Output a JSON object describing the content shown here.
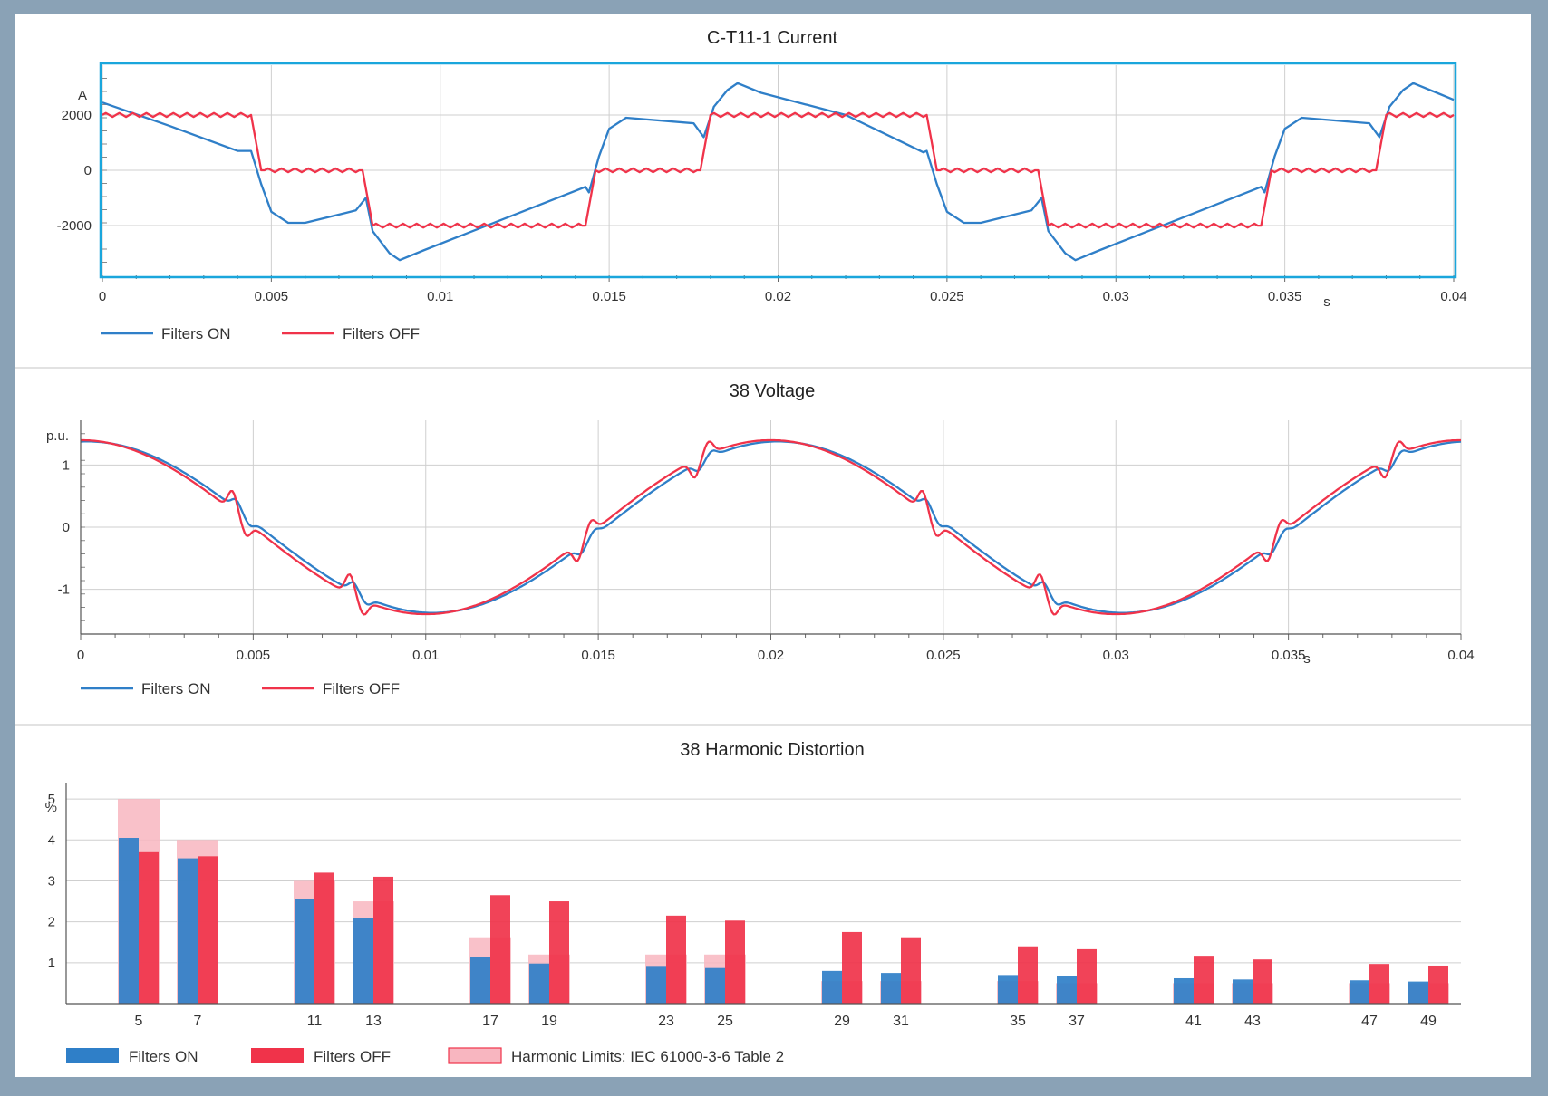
{
  "colors": {
    "filters_on": "#2f7fc8",
    "filters_off": "#f0334a",
    "limit_fill": "#f8b6c0",
    "limit_stroke": "#f0334a",
    "current_frame": "#1aa6dc",
    "grid": "#cfcfcf",
    "background": "#8aa2b6"
  },
  "chart_data": [
    {
      "type": "line",
      "title": "C-T11-1 Current",
      "yunit": "A",
      "xunit": "s",
      "xlim": [
        0,
        0.04
      ],
      "ylim": [
        -3800,
        3800
      ],
      "xticks": [
        0,
        0.005,
        0.01,
        0.015,
        0.02,
        0.025,
        0.03,
        0.035,
        0.04
      ],
      "xtick_labels": [
        "0",
        "0.005",
        "0.01",
        "0.015",
        "0.02",
        "0.025",
        "0.03",
        "0.035",
        "0.04"
      ],
      "yticks": [
        2000,
        0,
        -2000
      ],
      "ytick_labels": [
        "2000",
        "0",
        "-2000"
      ],
      "grid": true,
      "legend": "bottom-left",
      "series": [
        {
          "name": "Filters ON",
          "x": [
            0,
            0.002,
            0.004,
            0.0044,
            0.0047,
            0.005,
            0.0055,
            0.006,
            0.0075,
            0.0078,
            0.008,
            0.0085,
            0.0088,
            0.0095,
            0.012,
            0.0143,
            0.0144,
            0.0147,
            0.015,
            0.0155,
            0.0175,
            0.0178,
            0.0181,
            0.0185,
            0.0188,
            0.0195,
            0.022,
            0.0243,
            0.0244,
            0.0247,
            0.025,
            0.0255,
            0.026,
            0.0275,
            0.0278,
            0.028,
            0.0285,
            0.0288,
            0.0295,
            0.032,
            0.0343,
            0.0344,
            0.0347,
            0.035,
            0.0355,
            0.0375,
            0.0378,
            0.0381,
            0.0385,
            0.0388,
            0.0395,
            0.04
          ],
          "y": [
            2450,
            1600,
            700,
            700,
            -500,
            -1500,
            -1900,
            -1900,
            -1450,
            -1000,
            -2200,
            -3000,
            -3250,
            -2900,
            -1700,
            -600,
            -800,
            500,
            1500,
            1900,
            1700,
            1200,
            2300,
            2900,
            3150,
            2800,
            2000,
            650,
            700,
            -500,
            -1500,
            -1900,
            -1900,
            -1450,
            -1000,
            -2200,
            -3000,
            -3250,
            -2900,
            -1700,
            -600,
            -800,
            500,
            1500,
            1900,
            1700,
            1200,
            2300,
            2900,
            3150,
            2800,
            2550
          ]
        },
        {
          "name": "Filters OFF",
          "x": [
            0,
            0.0044,
            0.0047,
            0.0077,
            0.008,
            0.0143,
            0.0146,
            0.0177,
            0.018,
            0.0244,
            0.0247,
            0.0277,
            0.028,
            0.0343,
            0.0346,
            0.0377,
            0.038,
            0.04
          ],
          "y": [
            2000,
            2000,
            0,
            0,
            -2000,
            -2000,
            0,
            0,
            2000,
            2000,
            0,
            0,
            -2000,
            -2000,
            0,
            0,
            2000,
            2000
          ]
        }
      ]
    },
    {
      "type": "line",
      "title": "38 Voltage",
      "yunit": "p.u.",
      "xunit": "s",
      "xlim": [
        0,
        0.04
      ],
      "ylim": [
        -1.72,
        1.72
      ],
      "xticks": [
        0,
        0.005,
        0.01,
        0.015,
        0.02,
        0.025,
        0.03,
        0.035,
        0.04
      ],
      "xtick_labels": [
        "0",
        "0.005",
        "0.01",
        "0.015",
        "0.02",
        "0.025",
        "0.03",
        "0.035",
        "0.04"
      ],
      "yticks": [
        1,
        0,
        -1
      ],
      "ytick_labels": [
        "1",
        "0",
        "-1"
      ],
      "grid": true,
      "legend": "bottom-left",
      "series": [
        {
          "name": "Filters ON",
          "amplitude": 1.4
        },
        {
          "name": "Filters OFF",
          "amplitude": 1.4
        }
      ]
    },
    {
      "type": "bar",
      "title": "38 Harmonic Distortion",
      "yunit": "%",
      "ylim": [
        0,
        5.4
      ],
      "yticks": [
        1,
        2,
        3,
        4,
        5
      ],
      "ytick_labels": [
        "1",
        "2",
        "3",
        "4",
        "5"
      ],
      "categories": [
        "5",
        "7",
        "11",
        "13",
        "17",
        "19",
        "23",
        "25",
        "29",
        "31",
        "35",
        "37",
        "41",
        "43",
        "47",
        "49"
      ],
      "grid": true,
      "legend": "bottom-left",
      "series": [
        {
          "name": "Filters ON",
          "values": [
            4.05,
            3.55,
            2.55,
            2.1,
            1.15,
            0.98,
            0.9,
            0.87,
            0.8,
            0.75,
            0.7,
            0.67,
            0.62,
            0.59,
            0.57,
            0.54
          ]
        },
        {
          "name": "Filters OFF",
          "values": [
            3.7,
            3.6,
            3.2,
            3.1,
            2.65,
            2.5,
            2.15,
            2.03,
            1.75,
            1.6,
            1.4,
            1.33,
            1.17,
            1.08,
            0.97,
            0.93
          ]
        },
        {
          "name": "Harmonic Limits: IEC 61000-3-6 Table 2",
          "values": [
            5,
            4,
            3,
            2.5,
            1.6,
            1.2,
            1.2,
            1.2,
            0.55,
            0.55,
            0.55,
            0.5,
            0.5,
            0.5,
            0.5,
            0.5
          ]
        }
      ]
    }
  ]
}
